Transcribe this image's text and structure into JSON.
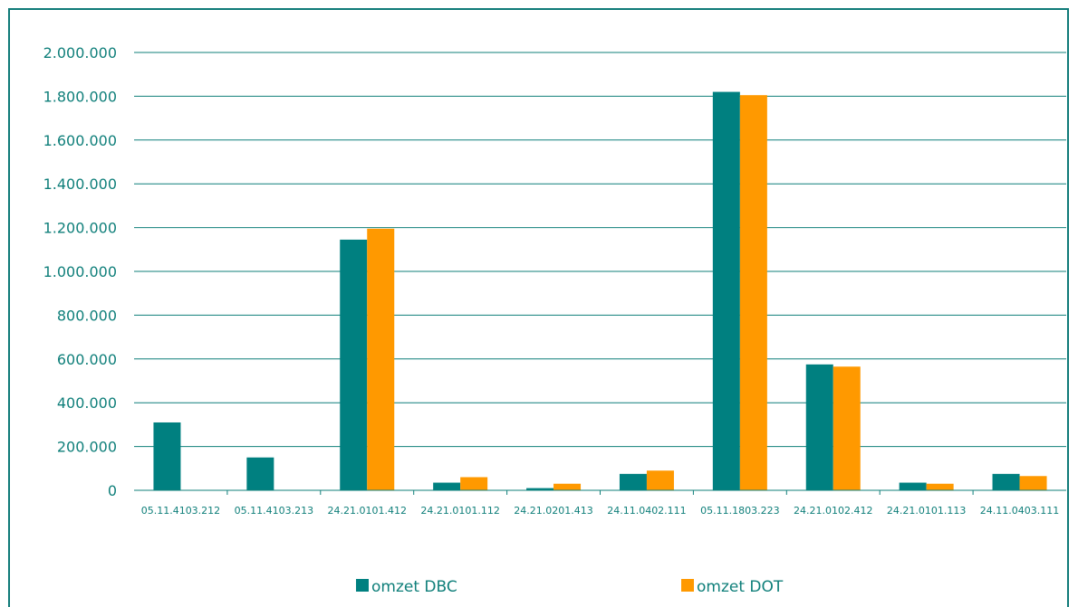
{
  "chart_data": {
    "type": "bar",
    "categories": [
      "05.11.4103.212",
      "05.11.4103.213",
      "24.21.0101.412",
      "24.21.0101.112",
      "24.21.0201.413",
      "24.11.0402.111",
      "05.11.1803.223",
      "24.21.0102.412",
      "24.21.0101.113",
      "24.11.0403.111"
    ],
    "series": [
      {
        "name": "omzet DBC",
        "color": "#008080",
        "values": [
          310000,
          150000,
          1145000,
          35000,
          10000,
          75000,
          1820000,
          575000,
          35000,
          75000
        ]
      },
      {
        "name": "omzet DOT",
        "color": "#ff9900",
        "values": [
          0,
          0,
          1195000,
          60000,
          30000,
          90000,
          1805000,
          565000,
          30000,
          65000
        ]
      }
    ],
    "yticks": [
      "0",
      "200.000",
      "400.000",
      "600.000",
      "800.000",
      "1.000.000",
      "1.200.000",
      "1.400.000",
      "1.600.000",
      "1.800.000",
      "2.000.000"
    ],
    "ylim": [
      0,
      2000000
    ],
    "grid": true,
    "legend": "bottom"
  }
}
